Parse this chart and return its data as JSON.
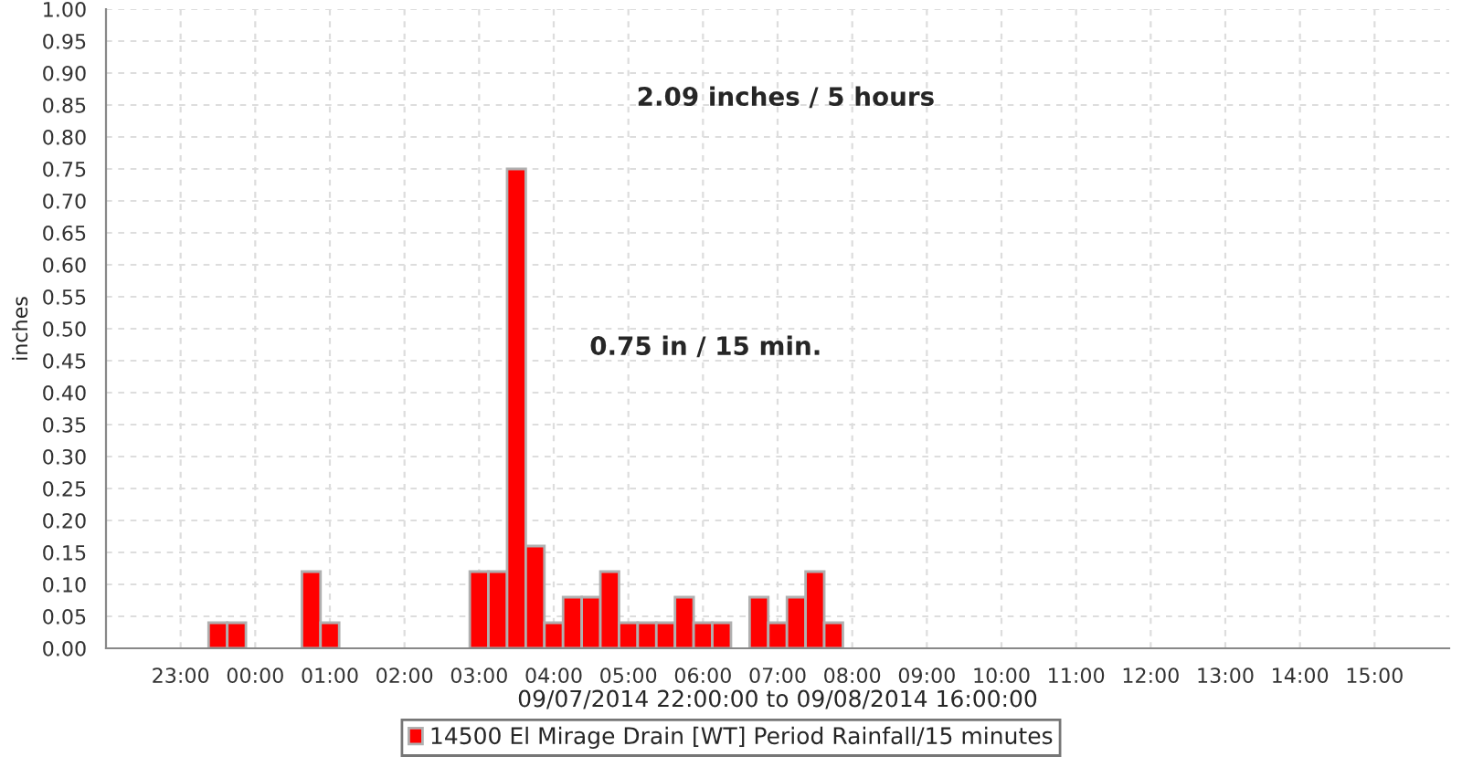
{
  "chart_data": {
    "type": "bar",
    "xlabel": "09/07/2014 22:00:00 to 09/08/2014 16:00:00",
    "ylabel": "inches",
    "annotations": [
      "2.09 inches / 5 hours",
      "0.75 in / 15 min."
    ],
    "x": [
      "2014-09-07T23:30",
      "2014-09-07T23:45",
      "2014-09-08T00:45",
      "2014-09-08T01:00",
      "2014-09-08T03:00",
      "2014-09-08T03:15",
      "2014-09-08T03:30",
      "2014-09-08T03:45",
      "2014-09-08T04:00",
      "2014-09-08T04:15",
      "2014-09-08T04:30",
      "2014-09-08T04:45",
      "2014-09-08T05:00",
      "2014-09-08T05:15",
      "2014-09-08T05:30",
      "2014-09-08T05:45",
      "2014-09-08T06:00",
      "2014-09-08T06:15",
      "2014-09-08T06:45",
      "2014-09-08T07:00",
      "2014-09-08T07:15",
      "2014-09-08T07:30",
      "2014-09-08T07:45"
    ],
    "series": [
      {
        "name": "14500 El Mirage Drain [WT] Period Rainfall/15 minutes",
        "color": "#ff0000",
        "values": [
          0.04,
          0.04,
          0.12,
          0.04,
          0.12,
          0.12,
          0.75,
          0.16,
          0.04,
          0.08,
          0.08,
          0.12,
          0.04,
          0.04,
          0.04,
          0.08,
          0.04,
          0.04,
          0.08,
          0.04,
          0.08,
          0.12,
          0.04
        ]
      }
    ],
    "xlim": [
      "2014-09-07T22:00",
      "2014-09-08T16:00"
    ],
    "xticks": [
      {
        "value": "2014-09-07T23:00",
        "label": "23:00"
      },
      {
        "value": "2014-09-08T00:00",
        "label": "00:00"
      },
      {
        "value": "2014-09-08T01:00",
        "label": "01:00"
      },
      {
        "value": "2014-09-08T02:00",
        "label": "02:00"
      },
      {
        "value": "2014-09-08T03:00",
        "label": "03:00"
      },
      {
        "value": "2014-09-08T04:00",
        "label": "04:00"
      },
      {
        "value": "2014-09-08T05:00",
        "label": "05:00"
      },
      {
        "value": "2014-09-08T06:00",
        "label": "06:00"
      },
      {
        "value": "2014-09-08T07:00",
        "label": "07:00"
      },
      {
        "value": "2014-09-08T08:00",
        "label": "08:00"
      },
      {
        "value": "2014-09-08T09:00",
        "label": "09:00"
      },
      {
        "value": "2014-09-08T10:00",
        "label": "10:00"
      },
      {
        "value": "2014-09-08T11:00",
        "label": "11:00"
      },
      {
        "value": "2014-09-08T12:00",
        "label": "12:00"
      },
      {
        "value": "2014-09-08T13:00",
        "label": "13:00"
      },
      {
        "value": "2014-09-08T14:00",
        "label": "14:00"
      },
      {
        "value": "2014-09-08T15:00",
        "label": "15:00"
      }
    ],
    "ylim": [
      0,
      1
    ],
    "yticks": [
      {
        "value": 0,
        "label": "0.00"
      },
      {
        "value": 0.05,
        "label": "0.05"
      },
      {
        "value": 0.1,
        "label": "0.10"
      },
      {
        "value": 0.15,
        "label": "0.15"
      },
      {
        "value": 0.2,
        "label": "0.20"
      },
      {
        "value": 0.25,
        "label": "0.25"
      },
      {
        "value": 0.3,
        "label": "0.30"
      },
      {
        "value": 0.35,
        "label": "0.35"
      },
      {
        "value": 0.4,
        "label": "0.40"
      },
      {
        "value": 0.45,
        "label": "0.45"
      },
      {
        "value": 0.5,
        "label": "0.50"
      },
      {
        "value": 0.55,
        "label": "0.55"
      },
      {
        "value": 0.6,
        "label": "0.60"
      },
      {
        "value": 0.65,
        "label": "0.65"
      },
      {
        "value": 0.7,
        "label": "0.70"
      },
      {
        "value": 0.75,
        "label": "0.75"
      },
      {
        "value": 0.8,
        "label": "0.80"
      },
      {
        "value": 0.85,
        "label": "0.85"
      },
      {
        "value": 0.9,
        "label": "0.90"
      },
      {
        "value": 0.95,
        "label": "0.95"
      },
      {
        "value": 1,
        "label": "1.00"
      }
    ],
    "grid": true,
    "legend": "bottom"
  }
}
